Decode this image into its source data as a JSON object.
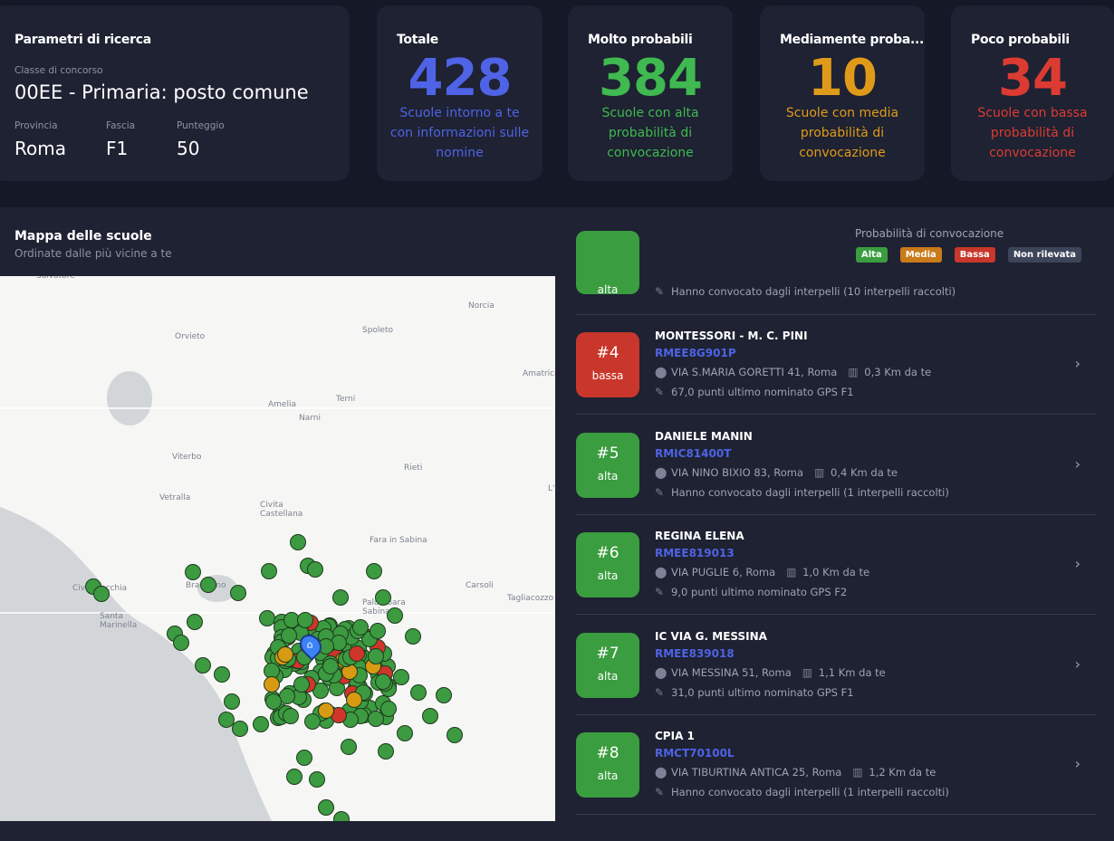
{
  "params": {
    "title": "Parametri di ricerca",
    "classe_label": "Classe di concorso",
    "classe_value": "00EE - Primaria: posto comune",
    "provincia_label": "Provincia",
    "provincia_value": "Roma",
    "fascia_label": "Fascia",
    "fascia_value": "F1",
    "punteggio_label": "Punteggio",
    "punteggio_value": "50"
  },
  "stats": [
    {
      "title": "Totale",
      "value": "428",
      "desc": "Scuole intorno a te con informazioni sulle nomine",
      "color": "#4f63e6"
    },
    {
      "title": "Molto probabili",
      "value": "384",
      "desc": "Scuole con alta probabilità di convocazione",
      "color": "#3fb950"
    },
    {
      "title": "Mediamente proba...",
      "value": "10",
      "desc": "Scuole con media probabilità di convocazione",
      "color": "#e09a1a"
    },
    {
      "title": "Poco probabili",
      "value": "34",
      "desc": "Scuole con bassa probabilità di convocazione",
      "color": "#dc3b32"
    }
  ],
  "map": {
    "title": "Mappa delle scuole",
    "subtitle": "Ordinate dalle più vicine a te",
    "legend_title": "Probabilità di convocazione",
    "legend": [
      {
        "label": "Alta",
        "color": "#3a9d3f"
      },
      {
        "label": "Media",
        "color": "#c97a1a"
      },
      {
        "label": "Bassa",
        "color": "#c9362b"
      },
      {
        "label": "Non rilevata",
        "color": "#3d4559"
      }
    ],
    "towns": [
      "Salvatore",
      "Orvieto",
      "Spoleto",
      "Norcia",
      "Amatrice",
      "Amelia",
      "Terni",
      "Narni",
      "Viterbo",
      "Rieti",
      "Vetralla",
      "Civita Castellana",
      "Fara in Sabina",
      "Civitavecchia",
      "Bracciano",
      "Palombara Sabina",
      "Carsoli",
      "Tagliacozzo",
      "Santa Marinella",
      "L'"
    ]
  },
  "top_item": {
    "prob": "alta",
    "line2": "Hanno convocato dagli interpelli (10 interpelli raccolti)"
  },
  "schools": [
    {
      "rank": "#4",
      "prob": "bassa",
      "name": "MONTESSORI - M. C. PINI",
      "code": "RMEE8G901P",
      "address": "VIA S.MARIA GORETTI 41, Roma",
      "distance": "0,3 Km da te",
      "info": "67,0 punti ultimo nominato  GPS  F1"
    },
    {
      "rank": "#5",
      "prob": "alta",
      "name": "DANIELE MANIN",
      "code": "RMIC81400T",
      "address": "VIA NINO BIXIO 83, Roma",
      "distance": "0,4 Km da te",
      "info": "Hanno convocato dagli interpelli (1 interpelli raccolti)"
    },
    {
      "rank": "#6",
      "prob": "alta",
      "name": "REGINA ELENA",
      "code": "RMEE819013",
      "address": "VIA PUGLIE 6, Roma",
      "distance": "1,0 Km da te",
      "info": "9,0 punti ultimo nominato  GPS  F2"
    },
    {
      "rank": "#7",
      "prob": "alta",
      "name": "IC VIA G. MESSINA",
      "code": "RMEE839018",
      "address": "VIA MESSINA 51, Roma",
      "distance": "1,1 Km da te",
      "info": "31,0 punti ultimo nominato  GPS  F1"
    },
    {
      "rank": "#8",
      "prob": "alta",
      "name": "CPIA 1",
      "code": "RMCT70100L",
      "address": "VIA TIBURTINA ANTICA 25, Roma",
      "distance": "1,2 Km da te",
      "info": "Hanno convocato dagli interpelli (1 interpelli raccolti)"
    }
  ]
}
